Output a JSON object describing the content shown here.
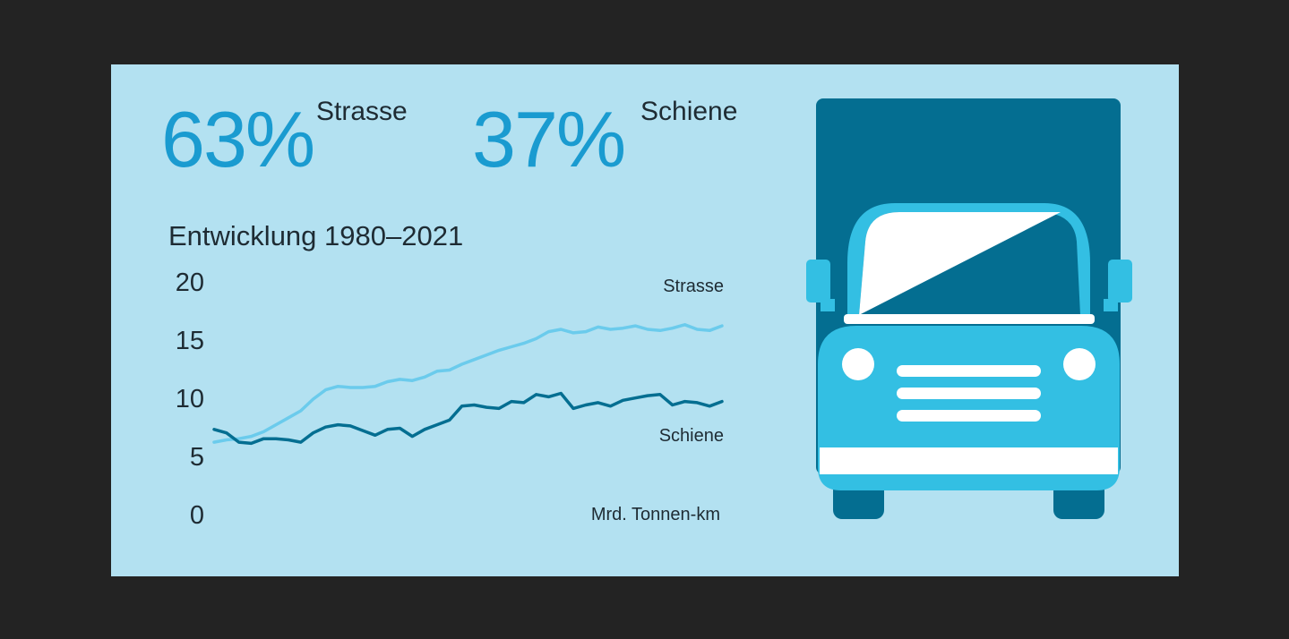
{
  "headline": {
    "road": {
      "value": "63%",
      "label": "Strasse"
    },
    "rail": {
      "value": "37%",
      "label": "Schiene"
    }
  },
  "colors": {
    "background": "#b3e1f1",
    "accent_text": "#1a9bd0",
    "road_line": "#6bcbec",
    "rail_line": "#046e91",
    "truck_dark": "#046e91",
    "truck_mid": "#33bfe3",
    "truck_white": "#ffffff"
  },
  "icons": {
    "truck": "truck-icon"
  },
  "chart_data": {
    "type": "line",
    "title": "Entwicklung 1980–2021",
    "unit_label": "Mrd. Tonnen-km",
    "ylim": [
      0,
      20
    ],
    "yticks": [
      20,
      15,
      10,
      5,
      0
    ],
    "grid": false,
    "x": [
      1980,
      1981,
      1982,
      1983,
      1984,
      1985,
      1986,
      1987,
      1988,
      1989,
      1990,
      1991,
      1992,
      1993,
      1994,
      1995,
      1996,
      1997,
      1998,
      1999,
      2000,
      2001,
      2002,
      2003,
      2004,
      2005,
      2006,
      2007,
      2008,
      2009,
      2010,
      2011,
      2012,
      2013,
      2014,
      2015,
      2016,
      2017,
      2018,
      2019,
      2020,
      2021
    ],
    "series": [
      {
        "name": "Strasse",
        "values": [
          6.3,
          6.5,
          6.6,
          6.8,
          7.2,
          7.8,
          8.4,
          9.0,
          10.0,
          10.8,
          11.1,
          11.0,
          11.0,
          11.1,
          11.5,
          11.7,
          11.6,
          11.9,
          12.4,
          12.5,
          13.0,
          13.4,
          13.8,
          14.2,
          14.5,
          14.8,
          15.2,
          15.8,
          16.0,
          15.7,
          15.8,
          16.2,
          16.0,
          16.1,
          16.3,
          16.0,
          15.9,
          16.1,
          16.4,
          16.0,
          15.9,
          16.3
        ]
      },
      {
        "name": "Schiene",
        "values": [
          7.4,
          7.1,
          6.3,
          6.2,
          6.6,
          6.6,
          6.5,
          6.3,
          7.1,
          7.6,
          7.8,
          7.7,
          7.3,
          6.9,
          7.4,
          7.5,
          6.8,
          7.4,
          7.8,
          8.2,
          9.4,
          9.5,
          9.3,
          9.2,
          9.8,
          9.7,
          10.4,
          10.2,
          10.5,
          9.2,
          9.5,
          9.7,
          9.4,
          9.9,
          10.1,
          10.3,
          10.4,
          9.5,
          9.8,
          9.7,
          9.4,
          9.8
        ]
      }
    ]
  }
}
